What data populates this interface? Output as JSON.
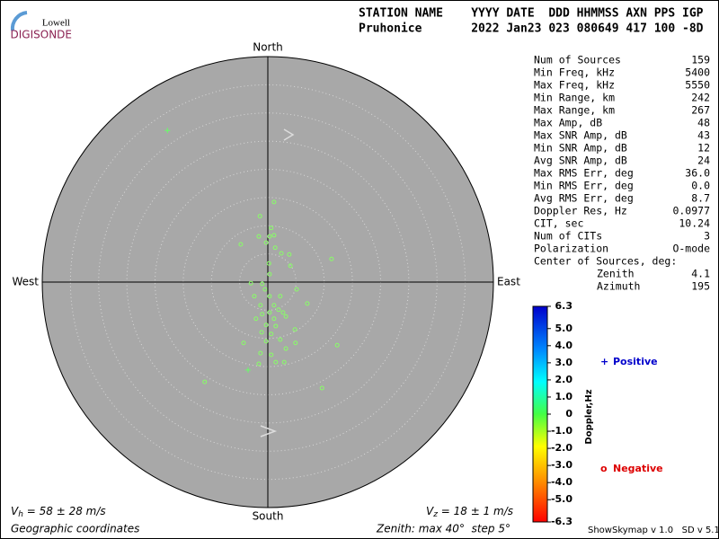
{
  "logo": {
    "top": "Lowell",
    "bottom": "DIGISONDE"
  },
  "header": {
    "line1": "STATION NAME    YYYY DATE  DDD HHMMSS AXN PPS IGP",
    "line2": "Pruhonice       2022 Jan23 023 080649 417 100 -8D"
  },
  "stats": [
    [
      "Num of Sources",
      "159"
    ],
    [
      "Min Freq, kHz",
      "5400"
    ],
    [
      "Max Freq, kHz",
      "5550"
    ],
    [
      "Min Range, km",
      "242"
    ],
    [
      "Max Range, km",
      "267"
    ],
    [
      "Max Amp, dB",
      "48"
    ],
    [
      "Max SNR Amp, dB",
      "43"
    ],
    [
      "Min SNR Amp, dB",
      "12"
    ],
    [
      "Avg SNR Amp, dB",
      "24"
    ],
    [
      "Max RMS Err, deg",
      "36.0"
    ],
    [
      "Min RMS Err, deg",
      "0.0"
    ],
    [
      "Avg RMS Err, deg",
      "8.7"
    ],
    [
      "Doppler Res, Hz",
      "0.0977"
    ],
    [
      "CIT, sec",
      "10.24"
    ],
    [
      "Num of CITs",
      "3"
    ],
    [
      "Polarization",
      "O-mode"
    ]
  ],
  "center": {
    "label": "Center of Sources, deg:",
    "rows": [
      [
        "Zenith",
        "4.1"
      ],
      [
        "Azimuth",
        "195"
      ]
    ]
  },
  "chart_data": {
    "type": "skymap",
    "directions": {
      "north": "North",
      "south": "South",
      "west": "West",
      "east": "East"
    },
    "zenith_max": 40,
    "zenith_step": 5,
    "xlim": [
      -40,
      40
    ],
    "ylim": [
      -40,
      40
    ],
    "series": [
      {
        "name": "Positive",
        "marker": "+",
        "color": "#0000cc",
        "point_color": "#66ff66",
        "x": [
          -17.8,
          -3.5
        ],
        "y": [
          26.9,
          -15.6
        ]
      },
      {
        "name": "Negative",
        "marker": "o",
        "color": "#dd0000",
        "point_color": "#88ff66",
        "x": [
          1.1,
          -1.4,
          0.6,
          -1.6,
          0.3,
          1.1,
          -4.8,
          -0.3,
          1.3,
          2.4,
          3.8,
          11.3,
          0.2,
          4.0,
          0.3,
          -3.0,
          -1.0,
          -0.5,
          5.1,
          -2.4,
          0.3,
          2.2,
          7.0,
          -1.3,
          1.1,
          1.9,
          2.7,
          0.3,
          -1.0,
          -2.1,
          1.1,
          3.2,
          -0.3,
          1.4,
          4.8,
          -1.1,
          0.6,
          2.2,
          -0.3,
          -4.3,
          4.9,
          12.3,
          3.2,
          -1.3,
          0.6,
          1.4,
          -1.6,
          2.9,
          -11.2,
          9.6
        ],
        "y": [
          14.2,
          11.7,
          9.6,
          8.1,
          8.1,
          8.3,
          6.7,
          7.0,
          6.1,
          5.1,
          4.9,
          4.1,
          3.3,
          2.9,
          1.4,
          -0.2,
          -0.3,
          -1.3,
          -1.3,
          -2.5,
          -2.5,
          -2.5,
          -3.8,
          -4.1,
          -4.1,
          -4.9,
          -5.4,
          -5.4,
          -5.7,
          -6.5,
          -6.5,
          -6.1,
          -7.6,
          -7.8,
          -8.4,
          -8.9,
          -9.2,
          -10.2,
          -10.5,
          -10.8,
          -10.8,
          -11.2,
          -11.8,
          -12.6,
          -12.9,
          -14.2,
          -14.5,
          -14.2,
          -17.7,
          -18.8
        ]
      }
    ],
    "colorbar": {
      "label": "Doppler,Hz",
      "lim": [
        -6.3,
        6.3
      ],
      "ticks": [
        6.3,
        {
          "value": 5,
          "label": "5.0"
        },
        {
          "value": 4,
          "label": "4.0"
        },
        {
          "value": 3,
          "label": "3.0"
        },
        {
          "value": 2,
          "label": "2.0"
        },
        {
          "value": 1,
          "label": "1.0"
        },
        0,
        {
          "value": -1,
          "label": "-1.0"
        },
        {
          "value": -2,
          "label": "-2.0"
        },
        {
          "value": -3,
          "label": "-3.0"
        },
        {
          "value": -4,
          "label": "-4.0"
        },
        {
          "value": -5,
          "label": "-5.0"
        },
        -6.3
      ]
    }
  },
  "footer": {
    "vh": [
      "V",
      "h",
      " = 58 ± 28 m/s"
    ],
    "vz": [
      "V",
      "z",
      " = 18 ± 1 m/s"
    ],
    "coords": "Geographic coordinates",
    "zenith": "Zenith: max 40°  step 5°",
    "version": "ShowSkymap v 1.0   SD v 5.1"
  }
}
